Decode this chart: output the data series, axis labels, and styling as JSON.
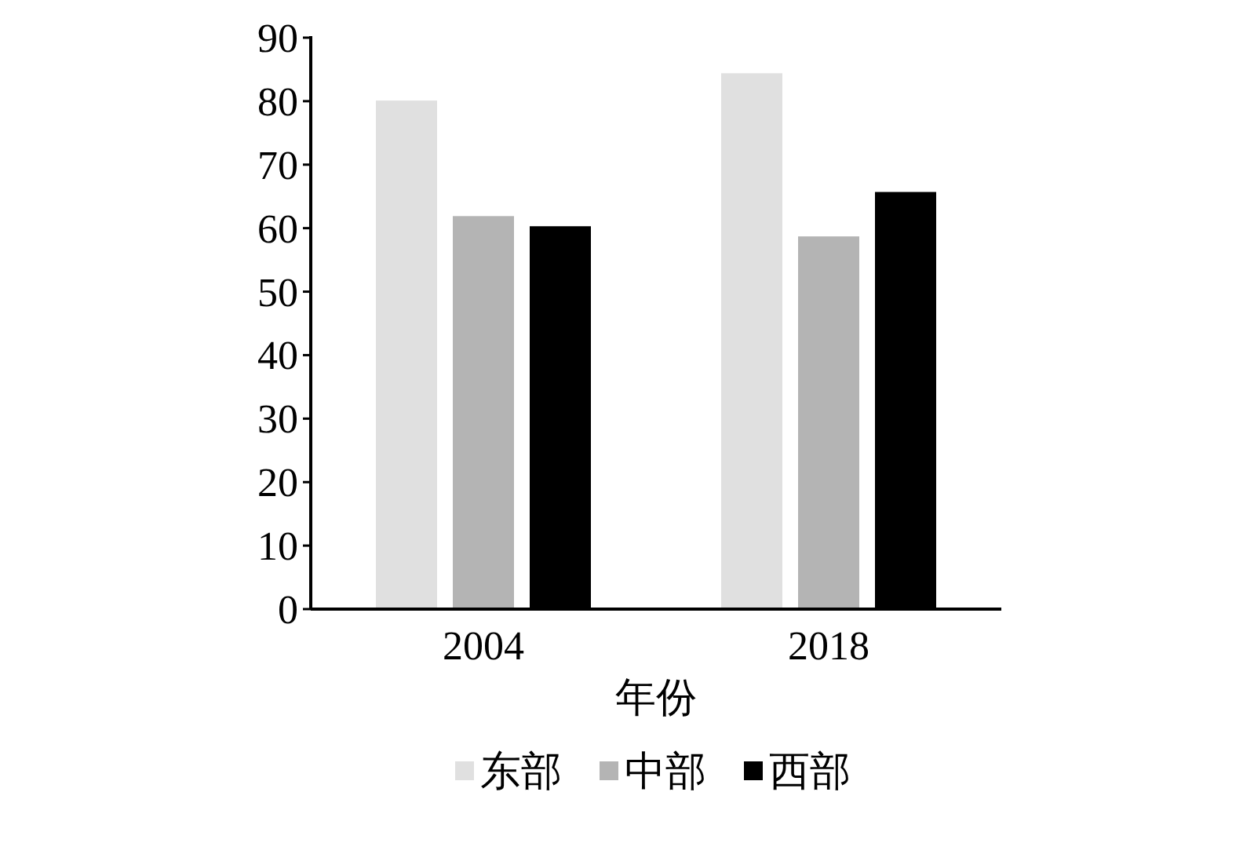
{
  "chart_data": {
    "type": "bar",
    "xlabel": "年份",
    "categories": [
      "2004",
      "2018"
    ],
    "series": [
      {
        "name": "东部",
        "color": "#e0e0e0",
        "values": [
          80.1,
          84.4
        ]
      },
      {
        "name": "中部",
        "color": "#b4b4b4",
        "values": [
          61.9,
          58.7
        ]
      },
      {
        "name": "西部",
        "color": "#000000",
        "values": [
          60.3,
          65.7
        ]
      }
    ],
    "ylim": [
      0,
      90
    ],
    "yticks": [
      0,
      10,
      20,
      30,
      40,
      50,
      60,
      70,
      80,
      90
    ],
    "grid": false,
    "legend": "bottom"
  }
}
